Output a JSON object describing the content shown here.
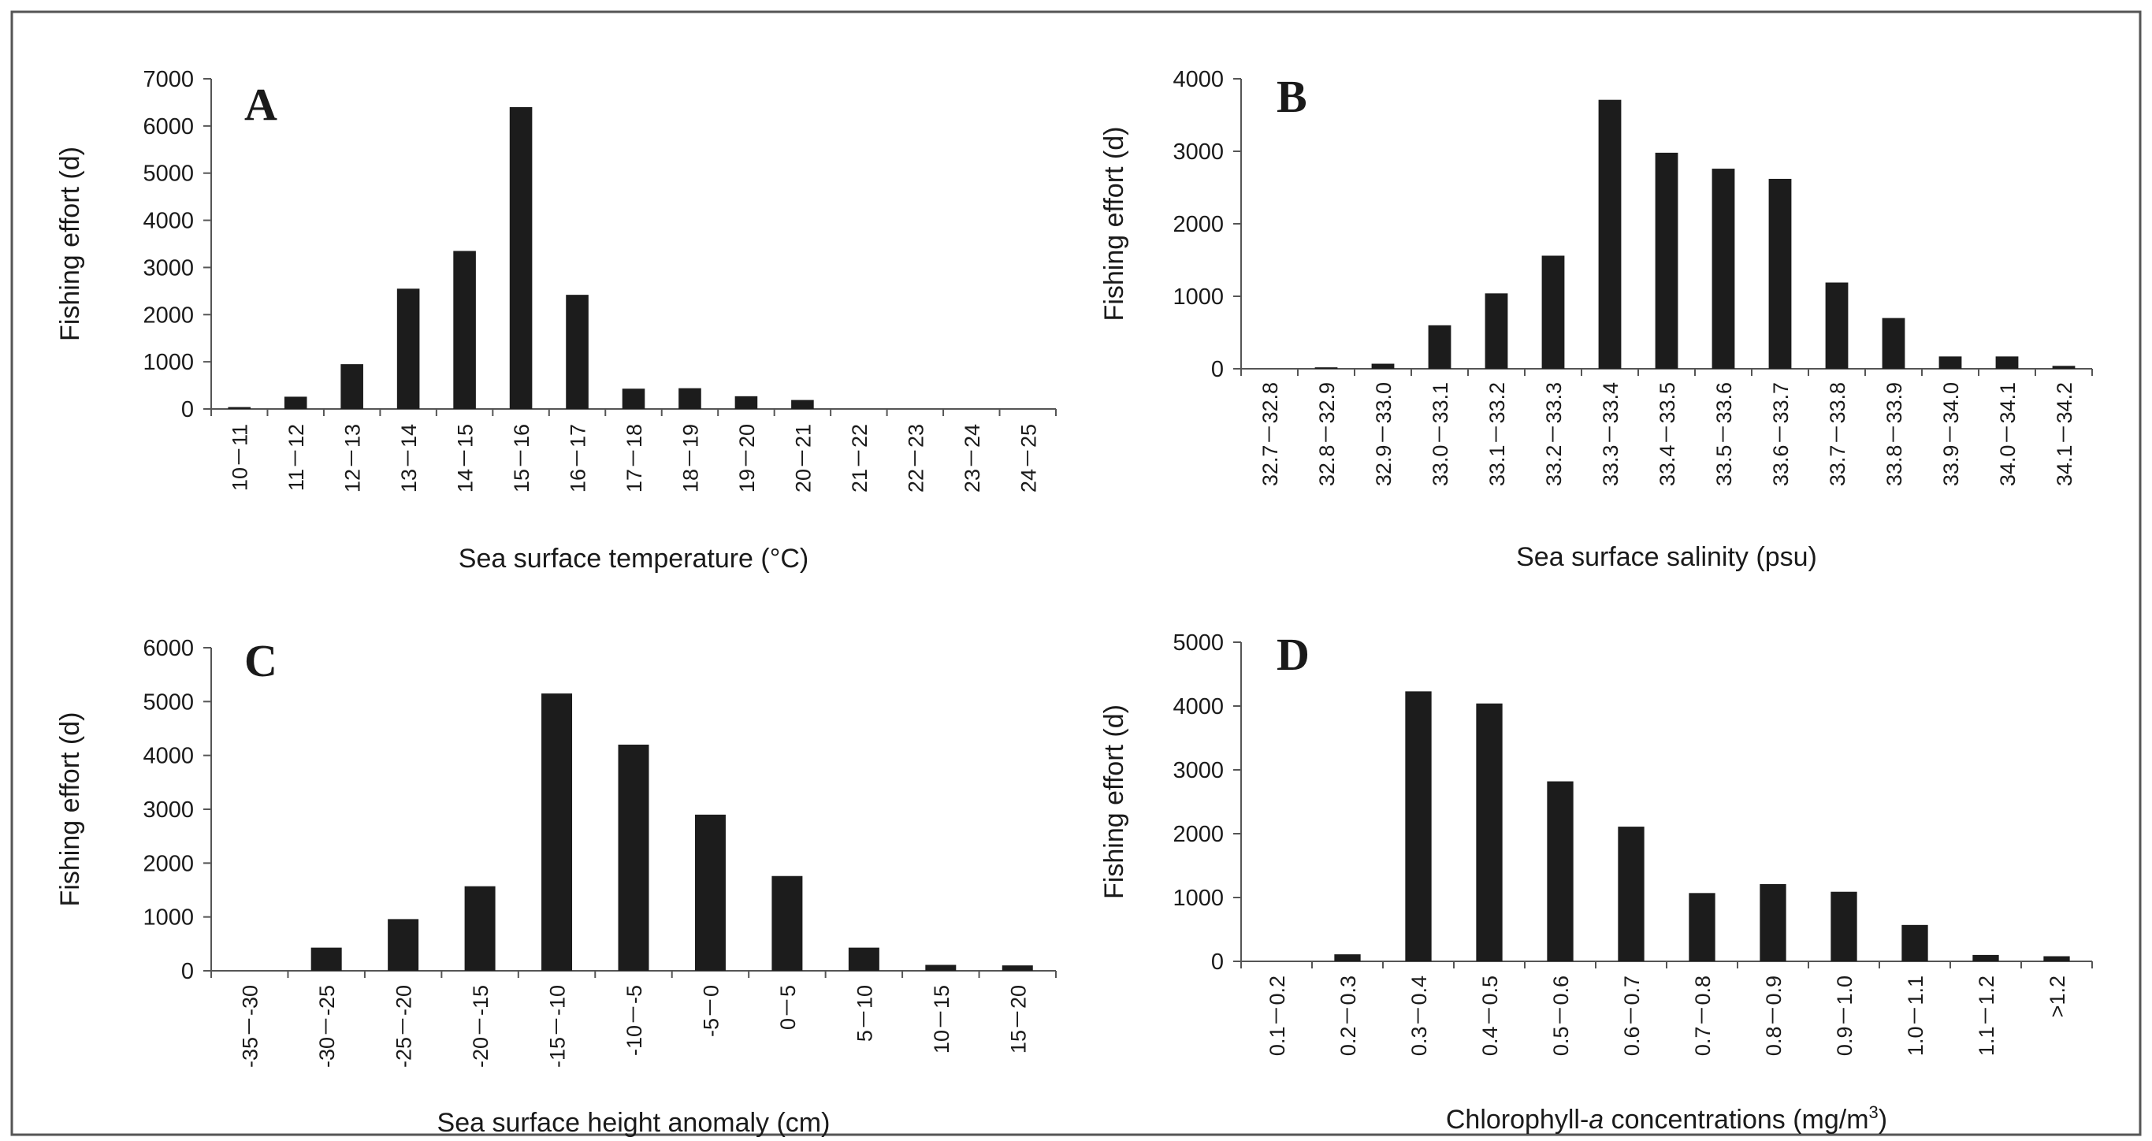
{
  "figure": {
    "bar_color": "#1c1c1c",
    "axis_color": "#555555",
    "frame_color": "#555555",
    "background": "#ffffff"
  },
  "chart_data": [
    {
      "panel": "A",
      "type": "bar",
      "ylabel": "Fishing effort (d)",
      "xlabel": "Sea surface temperature (°C)",
      "ylim": [
        0,
        7000
      ],
      "yticks": [
        0,
        1000,
        2000,
        3000,
        4000,
        5000,
        6000,
        7000
      ],
      "categories": [
        "10－11",
        "11－12",
        "12－13",
        "13－14",
        "14－15",
        "15－16",
        "16－17",
        "17－18",
        "18－19",
        "19－20",
        "20－21",
        "21－22",
        "22－23",
        "23－24",
        "24－25"
      ],
      "values": [
        40,
        260,
        950,
        2550,
        3350,
        6400,
        2420,
        430,
        440,
        270,
        190,
        0,
        0,
        0,
        0
      ]
    },
    {
      "panel": "B",
      "type": "bar",
      "ylabel": "Fishing effort (d)",
      "xlabel": "Sea surface salinity (psu)",
      "ylim": [
        0,
        4000
      ],
      "yticks": [
        0,
        1000,
        2000,
        3000,
        4000
      ],
      "categories": [
        "32.7－32.8",
        "32.8－32.9",
        "32.9－33.0",
        "33.0－33.1",
        "33.1－33.2",
        "33.2－33.3",
        "33.3－33.4",
        "33.4－33.5",
        "33.5－33.6",
        "33.6－33.7",
        "33.7－33.8",
        "33.8－33.9",
        "33.9－34.0",
        "34.0－34.1",
        "34.1－34.2"
      ],
      "values": [
        0,
        20,
        70,
        600,
        1040,
        1560,
        3710,
        2980,
        2760,
        2620,
        1190,
        700,
        170,
        170,
        40
      ]
    },
    {
      "panel": "C",
      "type": "bar",
      "ylabel": "Fishing effort (d)",
      "xlabel": "Sea surface height anomaly (cm)",
      "ylim": [
        0,
        6000
      ],
      "yticks": [
        0,
        1000,
        2000,
        3000,
        4000,
        5000,
        6000
      ],
      "categories": [
        "-35－-30",
        "-30－-25",
        "-25－-20",
        "-20－-15",
        "-15－-10",
        "-10－-5",
        "-5－0",
        "0－5",
        "5－10",
        "10－15",
        "15－20"
      ],
      "values": [
        0,
        430,
        960,
        1570,
        5150,
        4200,
        2900,
        1760,
        430,
        110,
        100
      ]
    },
    {
      "panel": "D",
      "type": "bar",
      "ylabel": "Fishing effort (d)",
      "xlabel": "Chlorophyll-a concentrations (mg/m3)",
      "xlabel_parts": {
        "pre": "Chlorophyll-",
        "italic": "a",
        "mid": " concentrations (mg/m",
        "sup": "3",
        "post": ")"
      },
      "ylim": [
        0,
        5000
      ],
      "yticks": [
        0,
        1000,
        2000,
        3000,
        4000,
        5000
      ],
      "categories": [
        "0.1－0.2",
        "0.2－0.3",
        "0.3－0.4",
        "0.4－0.5",
        "0.5－0.6",
        "0.6－0.7",
        "0.7－0.8",
        "0.8－0.9",
        "0.9－1.0",
        "1.0－1.1",
        "1.1－1.2",
        ">1.2"
      ],
      "values": [
        0,
        110,
        4230,
        4040,
        2820,
        2110,
        1070,
        1210,
        1090,
        570,
        100,
        80
      ]
    }
  ]
}
